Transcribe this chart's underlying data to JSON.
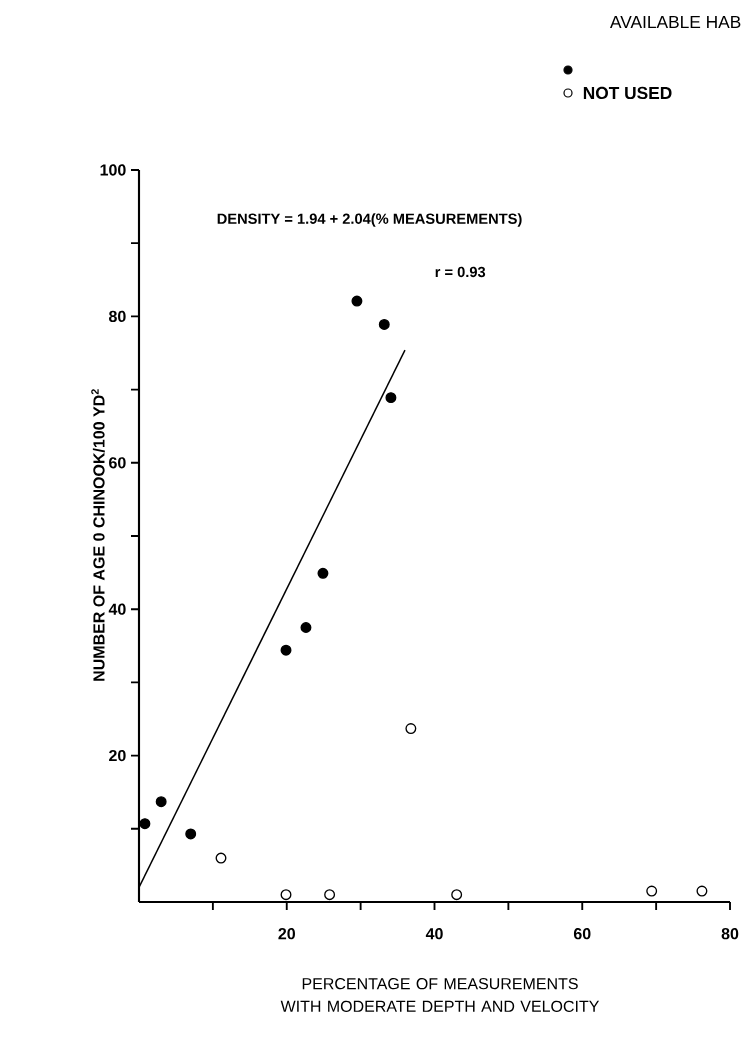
{
  "chart_data": {
    "type": "scatter",
    "title": "AVAILABLE HAB",
    "xlabel": "PERCENTAGE OF MEASUREMENTS WITH MODERATE DEPTH AND VELOCITY",
    "ylabel": "NUMBER OF AGE 0 CHINOOK/100 YD$^{2}$",
    "annotations": [
      "DENSITY = 1.94 + 2.04(% MEASUREMENTS)",
      "r = 0.93"
    ],
    "xlim": [
      0,
      80
    ],
    "ylim": [
      0,
      100
    ],
    "xticks": [
      {
        "value": 10,
        "label": null
      },
      20,
      {
        "value": 30,
        "label": null
      },
      40,
      {
        "value": 50,
        "label": null
      },
      60,
      {
        "value": 70,
        "label": null
      },
      80
    ],
    "yticks": [
      {
        "value": 10,
        "label": null
      },
      20,
      {
        "value": 30,
        "label": null
      },
      40,
      {
        "value": 50,
        "label": null
      },
      60,
      {
        "value": 70,
        "label": null
      },
      80,
      {
        "value": 90,
        "label": null
      },
      100
    ],
    "legend": "top right",
    "marker": "circle",
    "series": [
      {
        "color": "#000000",
        "x": [
          0.8,
          3.0,
          7.0,
          19.9,
          22.6,
          24.9,
          29.5,
          33.2,
          34.1
        ],
        "values": [
          10.7,
          13.7,
          9.3,
          34.4,
          37.5,
          44.9,
          82.1,
          78.9,
          68.9
        ]
      },
      {
        "name": "NOT USED",
        "color": "#ffffff",
        "x": [
          11.1,
          19.9,
          25.8,
          36.8,
          43.0,
          69.4,
          76.2
        ],
        "values": [
          6.0,
          1.0,
          1.0,
          23.7,
          1.0,
          1.5,
          1.5
        ]
      },
      {
        "type": "line",
        "color": "#000000",
        "marker": "none",
        "x": [
          0,
          36
        ],
        "values": [
          2,
          75.4
        ]
      }
    ]
  }
}
